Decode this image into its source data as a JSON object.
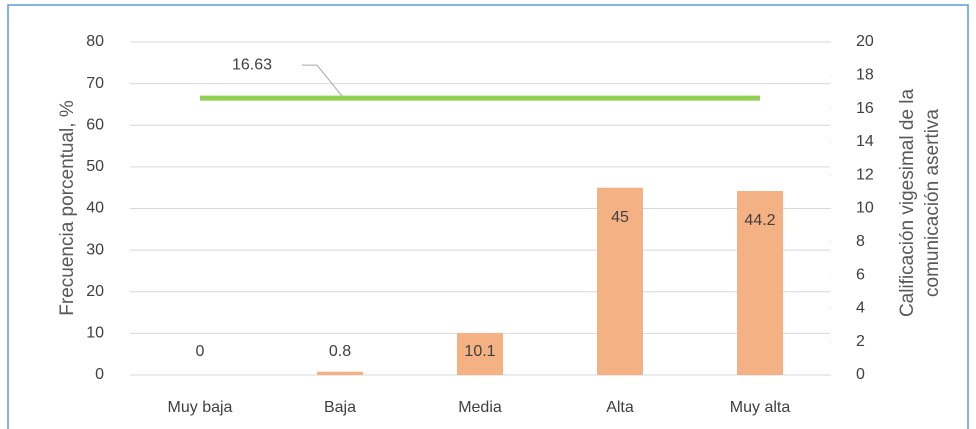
{
  "chart_data": {
    "type": "bar",
    "categories": [
      "Muy baja",
      "Baja",
      "Media",
      "Alta",
      "Muy alta"
    ],
    "series": [
      {
        "type": "bar",
        "color": "#f4b183",
        "values": [
          0,
          0.8,
          10.1,
          45,
          44.2
        ]
      },
      {
        "type": "line",
        "axis": "y2",
        "color": "#92d050",
        "values": [
          16.63,
          16.63,
          16.63,
          16.63,
          16.63
        ]
      }
    ],
    "ylabel": "Frecuencia porcentual, %",
    "y2label": [
      "Calificación vigesimal de la",
      "comunicación asertiva"
    ],
    "ylim": [
      0,
      80
    ],
    "yticks": [
      0,
      10,
      20,
      30,
      40,
      50,
      60,
      70,
      80
    ],
    "y2lim": [
      0,
      20
    ],
    "y2ticks": [
      0,
      2,
      4,
      6,
      8,
      10,
      12,
      14,
      16,
      18,
      20
    ],
    "grid": true
  }
}
